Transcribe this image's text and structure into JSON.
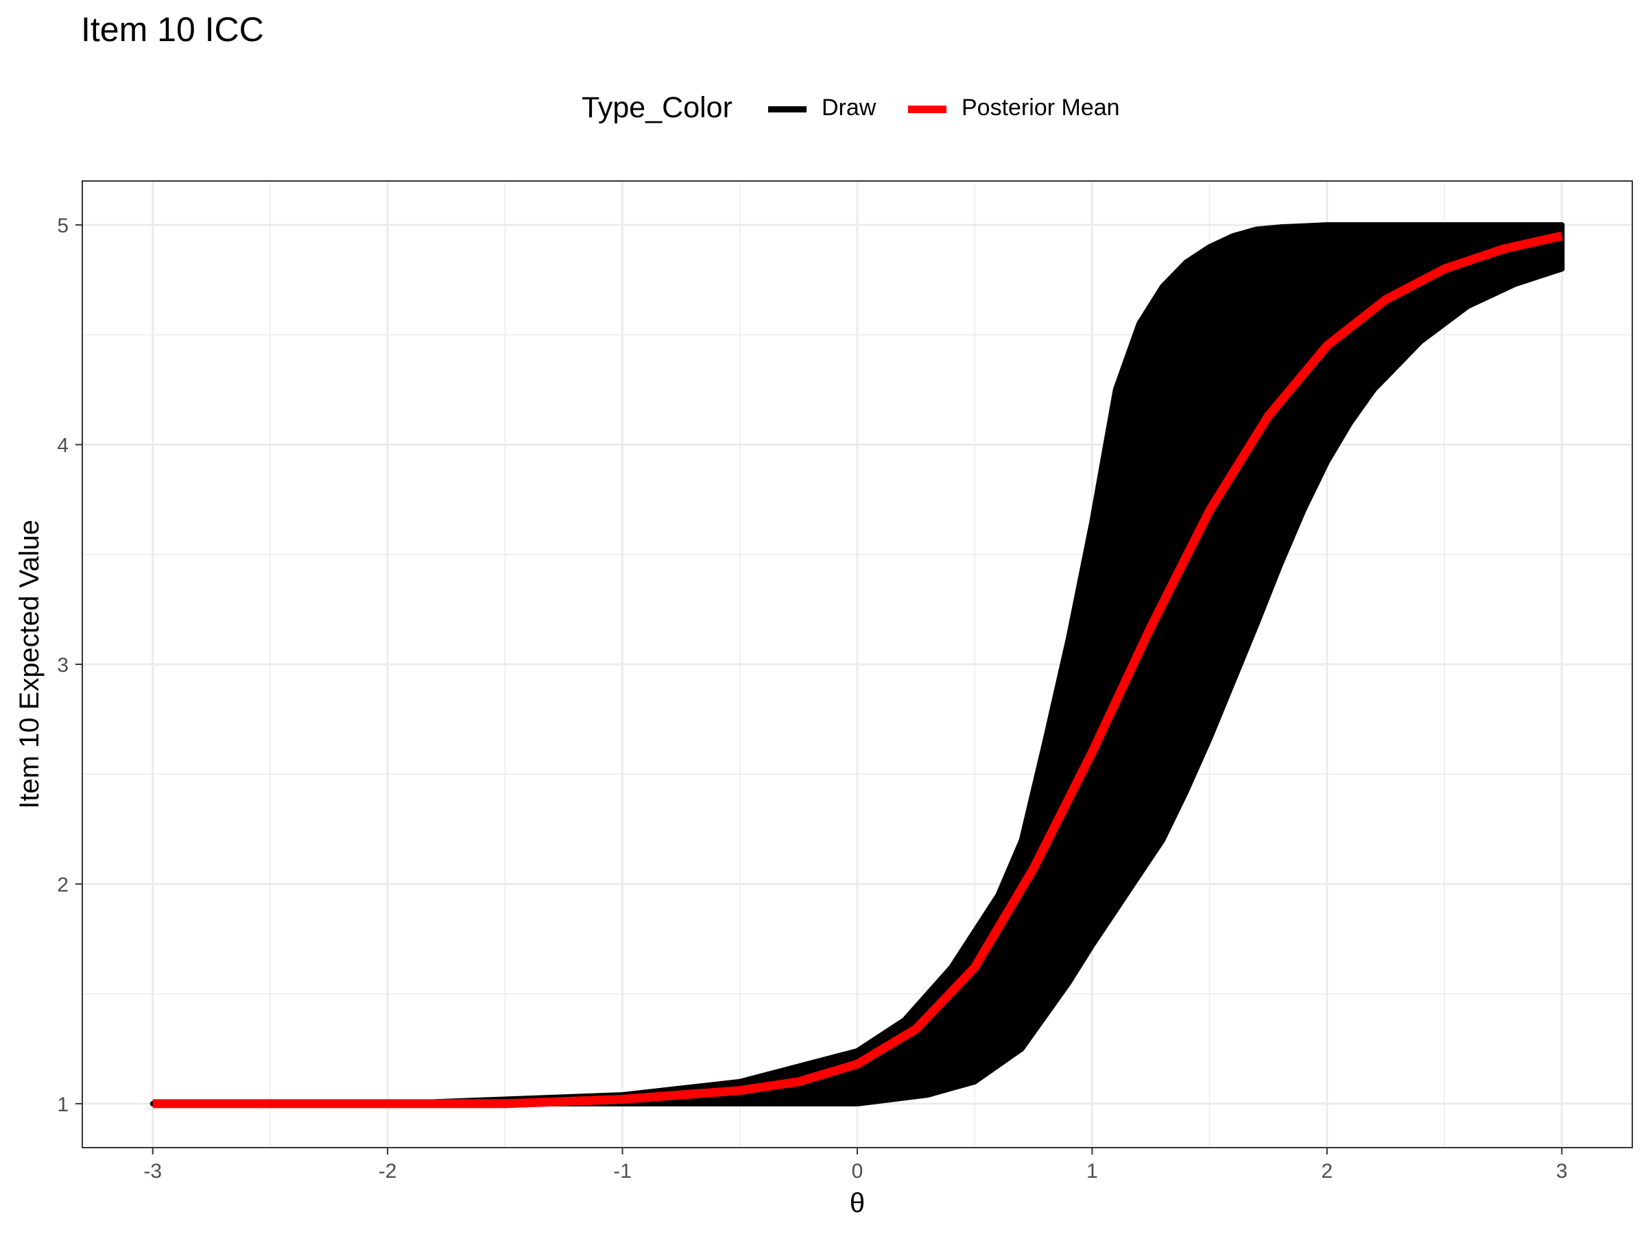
{
  "chart_data": {
    "type": "line",
    "title": "Item 10 ICC",
    "xlabel": "θ",
    "ylabel": "Item 10 Expected Value",
    "xlim": [
      -3.3,
      3.3
    ],
    "ylim": [
      0.8,
      5.2
    ],
    "x_ticks": [
      -3,
      -2,
      -1,
      0,
      1,
      2,
      3
    ],
    "y_ticks": [
      1,
      2,
      3,
      4,
      5
    ],
    "grid": true,
    "legend": {
      "title": "Type_Color",
      "placement": "top",
      "entries": [
        {
          "label": "Draw",
          "color": "#000000"
        },
        {
          "label": "Posterior Mean",
          "color": "#ff0000"
        }
      ]
    },
    "series": [
      {
        "name": "Draw",
        "color": "#000000",
        "kind": "band",
        "upper": {
          "x": [
            -3,
            -2,
            -1,
            -0.5,
            0,
            0.2,
            0.4,
            0.6,
            0.7,
            0.8,
            0.9,
            1.0,
            1.1,
            1.2,
            1.3,
            1.4,
            1.5,
            1.6,
            1.7,
            1.8,
            2.0,
            2.5,
            3.0
          ],
          "y": [
            1.0,
            1.0,
            1.04,
            1.1,
            1.24,
            1.38,
            1.62,
            1.95,
            2.2,
            2.65,
            3.12,
            3.65,
            4.25,
            4.55,
            4.72,
            4.83,
            4.9,
            4.95,
            4.98,
            4.99,
            5.0,
            5.0,
            5.0
          ]
        },
        "lower": {
          "x": [
            -3,
            -2,
            -1,
            0,
            0.3,
            0.5,
            0.7,
            0.9,
            1.0,
            1.1,
            1.2,
            1.3,
            1.4,
            1.5,
            1.6,
            1.7,
            1.8,
            1.9,
            2.0,
            2.1,
            2.2,
            2.4,
            2.6,
            2.8,
            3.0
          ],
          "y": [
            1.0,
            1.0,
            1.0,
            1.0,
            1.04,
            1.1,
            1.25,
            1.55,
            1.72,
            1.88,
            2.04,
            2.2,
            2.42,
            2.66,
            2.92,
            3.18,
            3.45,
            3.7,
            3.92,
            4.1,
            4.25,
            4.47,
            4.63,
            4.73,
            4.8
          ]
        }
      },
      {
        "name": "Posterior Mean",
        "color": "#ff0000",
        "x": [
          -3,
          -2.5,
          -2,
          -1.5,
          -1,
          -0.5,
          -0.25,
          0,
          0.25,
          0.5,
          0.75,
          1.0,
          1.25,
          1.5,
          1.75,
          2.0,
          2.25,
          2.5,
          2.75,
          3.0
        ],
        "y": [
          1.0,
          1.0,
          1.0,
          1.0,
          1.02,
          1.06,
          1.1,
          1.18,
          1.34,
          1.62,
          2.07,
          2.6,
          3.17,
          3.7,
          4.13,
          4.45,
          4.66,
          4.8,
          4.89,
          4.95
        ]
      }
    ]
  }
}
